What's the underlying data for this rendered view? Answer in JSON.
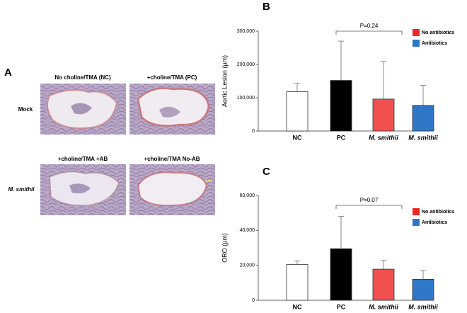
{
  "panel_a": {
    "letter": "A",
    "columns_top": [
      "No choline/TMA (NC)",
      "+choline/TMA (PC)"
    ],
    "columns_bottom": [
      "+choline/TMA +AB",
      "+choline/TMA No-AB"
    ],
    "rows": [
      "Mock",
      "M. smithii"
    ]
  },
  "chart_data": [
    {
      "type": "bar",
      "panel_label": "B",
      "y_label": "Aortic Lesion (µm)",
      "categories": [
        "NC",
        "PC",
        "M. smithii",
        "M. smithii"
      ],
      "values": [
        118000,
        152000,
        96000,
        77000
      ],
      "errors": [
        25000,
        118000,
        113000,
        60000
      ],
      "colors": [
        "#ffffff",
        "#000000",
        "#f25050",
        "#2f78c8"
      ],
      "ylim": [
        0,
        300000
      ],
      "yticks": [
        0,
        {
          "value": 100000,
          "label": "100,000"
        },
        {
          "value": 200000,
          "label": "200,000"
        },
        {
          "value": 300000,
          "label": "300,000"
        }
      ],
      "annotation": "P=0.24",
      "legend": [
        {
          "name": "No antibiotics",
          "color": "#f02828"
        },
        {
          "name": "Antibiotics",
          "color": "#2f78c8"
        }
      ]
    },
    {
      "type": "bar",
      "panel_label": "C",
      "y_label": "ORO (µm)",
      "categories": [
        "NC",
        "PC",
        "M. smithii",
        "M. smithii"
      ],
      "values": [
        20500,
        29500,
        17800,
        12000
      ],
      "errors": [
        2000,
        18500,
        5000,
        5000
      ],
      "colors": [
        "#ffffff",
        "#000000",
        "#f25050",
        "#2f78c8"
      ],
      "ylim": [
        0,
        60000
      ],
      "yticks": [
        0,
        {
          "value": 20000,
          "label": "20,000"
        },
        {
          "value": 40000,
          "label": "40,000"
        },
        {
          "value": 60000,
          "label": "60,000"
        }
      ],
      "annotation": "P=0.07",
      "legend": [
        {
          "name": "No antibiotics",
          "color": "#f02828"
        },
        {
          "name": "Antibiotics",
          "color": "#2f78c8"
        }
      ]
    }
  ]
}
